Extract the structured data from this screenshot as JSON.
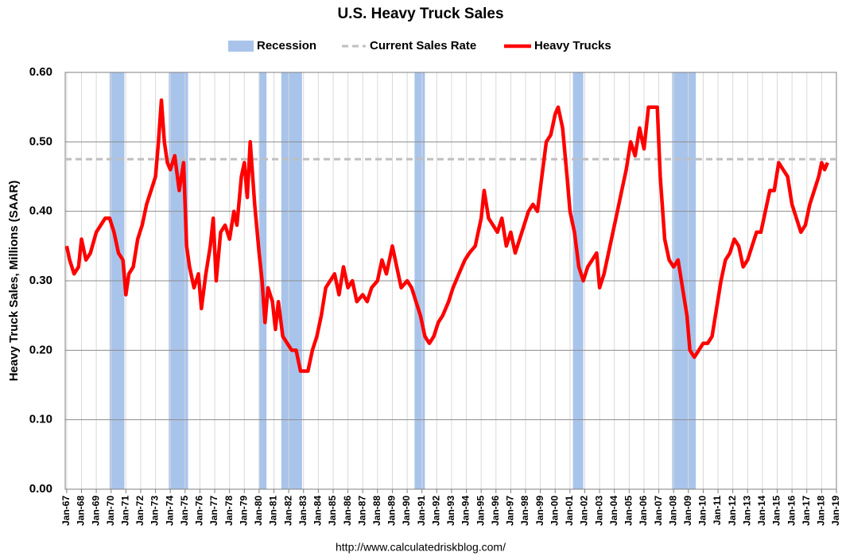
{
  "chart_data": {
    "type": "line",
    "title": "U.S. Heavy Truck Sales",
    "y_label": "Heavy Truck Sales, Millions (SAAR)",
    "source": "http://www.calculatedriskblog.com/",
    "xlim": [
      1966.9,
      2019.0
    ],
    "ylim": [
      0,
      0.6
    ],
    "grid": true,
    "legend": "top",
    "yticks": [
      {
        "value": 0,
        "label": "0.00"
      },
      {
        "value": 0.1,
        "label": "0.10"
      },
      {
        "value": 0.2,
        "label": "0.20"
      },
      {
        "value": 0.3,
        "label": "0.30"
      },
      {
        "value": 0.4,
        "label": "0.40"
      },
      {
        "value": 0.5,
        "label": "0.50"
      },
      {
        "value": 0.6,
        "label": "0.60"
      }
    ],
    "xticks": [
      {
        "value": 1967,
        "label": "Jan-67"
      },
      {
        "value": 1968,
        "label": "Jan-68"
      },
      {
        "value": 1969,
        "label": "Jan-69"
      },
      {
        "value": 1970,
        "label": "Jan-70"
      },
      {
        "value": 1971,
        "label": "Jan-71"
      },
      {
        "value": 1972,
        "label": "Jan-72"
      },
      {
        "value": 1973,
        "label": "Jan-73"
      },
      {
        "value": 1974,
        "label": "Jan-74"
      },
      {
        "value": 1975,
        "label": "Jan-75"
      },
      {
        "value": 1976,
        "label": "Jan-76"
      },
      {
        "value": 1977,
        "label": "Jan-77"
      },
      {
        "value": 1978,
        "label": "Jan-78"
      },
      {
        "value": 1979,
        "label": "Jan-79"
      },
      {
        "value": 1980,
        "label": "Jan-80"
      },
      {
        "value": 1981,
        "label": "Jan-81"
      },
      {
        "value": 1982,
        "label": "Jan-82"
      },
      {
        "value": 1983,
        "label": "Jan-83"
      },
      {
        "value": 1984,
        "label": "Jan-84"
      },
      {
        "value": 1985,
        "label": "Jan-85"
      },
      {
        "value": 1986,
        "label": "Jan-86"
      },
      {
        "value": 1987,
        "label": "Jan-87"
      },
      {
        "value": 1988,
        "label": "Jan-88"
      },
      {
        "value": 1989,
        "label": "Jan-89"
      },
      {
        "value": 1990,
        "label": "Jan-90"
      },
      {
        "value": 1991,
        "label": "Jan-91"
      },
      {
        "value": 1992,
        "label": "Jan-92"
      },
      {
        "value": 1993,
        "label": "Jan-93"
      },
      {
        "value": 1994,
        "label": "Jan-94"
      },
      {
        "value": 1995,
        "label": "Jan-95"
      },
      {
        "value": 1996,
        "label": "Jan-96"
      },
      {
        "value": 1997,
        "label": "Jan-97"
      },
      {
        "value": 1998,
        "label": "Jan-98"
      },
      {
        "value": 1999,
        "label": "Jan-99"
      },
      {
        "value": 2000,
        "label": "Jan-00"
      },
      {
        "value": 2001,
        "label": "Jan-01"
      },
      {
        "value": 2002,
        "label": "Jan-02"
      },
      {
        "value": 2003,
        "label": "Jan-03"
      },
      {
        "value": 2004,
        "label": "Jan-04"
      },
      {
        "value": 2005,
        "label": "Jan-05"
      },
      {
        "value": 2006,
        "label": "Jan-06"
      },
      {
        "value": 2007,
        "label": "Jan-07"
      },
      {
        "value": 2008,
        "label": "Jan-08"
      },
      {
        "value": 2009,
        "label": "Jan-09"
      },
      {
        "value": 2010,
        "label": "Jan-10"
      },
      {
        "value": 2011,
        "label": "Jan-11"
      },
      {
        "value": 2012,
        "label": "Jan-12"
      },
      {
        "value": 2013,
        "label": "Jan-13"
      },
      {
        "value": 2014,
        "label": "Jan-14"
      },
      {
        "value": 2015,
        "label": "Jan-15"
      },
      {
        "value": 2016,
        "label": "Jan-16"
      },
      {
        "value": 2017,
        "label": "Jan-17"
      },
      {
        "value": 2018,
        "label": "Jan-18"
      },
      {
        "value": 2019,
        "label": "Jan-19"
      }
    ],
    "recessions": {
      "name": "Recession",
      "color": "#a9c4eb",
      "spans": [
        [
          1969.9,
          1970.9
        ],
        [
          1973.9,
          1975.2
        ],
        [
          1980.0,
          1980.5
        ],
        [
          1981.5,
          1982.9
        ],
        [
          1990.5,
          1991.2
        ],
        [
          2001.2,
          2001.9
        ],
        [
          2007.9,
          2009.5
        ]
      ]
    },
    "reference_line": {
      "name": "Current Sales Rate",
      "color": "#bfbfbf",
      "value": 0.475
    },
    "x": [
      1967.0,
      1967.2,
      1967.5,
      1967.8,
      1968.0,
      1968.3,
      1968.6,
      1969.0,
      1969.3,
      1969.6,
      1969.9,
      1970.2,
      1970.5,
      1970.8,
      1971.0,
      1971.2,
      1971.5,
      1971.8,
      1972.1,
      1972.4,
      1972.7,
      1973.0,
      1973.2,
      1973.4,
      1973.6,
      1973.8,
      1974.0,
      1974.3,
      1974.6,
      1974.9,
      1975.1,
      1975.3,
      1975.6,
      1975.9,
      1976.1,
      1976.4,
      1976.7,
      1976.9,
      1977.1,
      1977.4,
      1977.7,
      1978.0,
      1978.3,
      1978.5,
      1978.8,
      1979.0,
      1979.2,
      1979.4,
      1979.7,
      1980.0,
      1980.2,
      1980.4,
      1980.6,
      1980.9,
      1981.1,
      1981.3,
      1981.6,
      1981.9,
      1982.2,
      1982.5,
      1982.8,
      1983.0,
      1983.3,
      1983.6,
      1983.9,
      1984.2,
      1984.5,
      1984.8,
      1985.1,
      1985.4,
      1985.7,
      1986.0,
      1986.3,
      1986.6,
      1987.0,
      1987.3,
      1987.6,
      1988.0,
      1988.3,
      1988.6,
      1989.0,
      1989.3,
      1989.6,
      1990.0,
      1990.3,
      1990.6,
      1990.9,
      1991.2,
      1991.5,
      1991.8,
      1992.1,
      1992.4,
      1992.8,
      1993.1,
      1993.5,
      1993.9,
      1994.2,
      1994.6,
      1995.0,
      1995.2,
      1995.5,
      1995.8,
      1996.1,
      1996.4,
      1996.7,
      1997.0,
      1997.3,
      1997.6,
      1997.9,
      1998.2,
      1998.5,
      1998.8,
      1999.1,
      1999.4,
      1999.7,
      2000.0,
      2000.2,
      2000.5,
      2000.8,
      2001.0,
      2001.3,
      2001.6,
      2001.9,
      2002.2,
      2002.5,
      2002.8,
      2003.0,
      2003.3,
      2003.6,
      2003.9,
      2004.2,
      2004.5,
      2004.8,
      2005.1,
      2005.4,
      2005.7,
      2006.0,
      2006.3,
      2006.6,
      2006.9,
      2007.1,
      2007.4,
      2007.7,
      2008.0,
      2008.3,
      2008.6,
      2008.9,
      2009.1,
      2009.4,
      2009.7,
      2010.0,
      2010.3,
      2010.6,
      2010.9,
      2011.2,
      2011.5,
      2011.8,
      2012.1,
      2012.4,
      2012.7,
      2013.0,
      2013.3,
      2013.6,
      2013.9,
      2014.2,
      2014.5,
      2014.8,
      2015.1,
      2015.4,
      2015.7,
      2016.0,
      2016.3,
      2016.6,
      2016.9,
      2017.2,
      2017.5,
      2017.8,
      2018.0,
      2018.2,
      2018.4
    ],
    "series": [
      {
        "name": "Heavy Trucks",
        "color": "#ff0000",
        "values": [
          0.35,
          0.33,
          0.31,
          0.32,
          0.36,
          0.33,
          0.34,
          0.37,
          0.38,
          0.39,
          0.39,
          0.37,
          0.34,
          0.33,
          0.28,
          0.31,
          0.32,
          0.36,
          0.38,
          0.41,
          0.43,
          0.45,
          0.5,
          0.56,
          0.5,
          0.47,
          0.46,
          0.48,
          0.43,
          0.47,
          0.35,
          0.32,
          0.29,
          0.31,
          0.26,
          0.31,
          0.35,
          0.39,
          0.3,
          0.37,
          0.38,
          0.36,
          0.4,
          0.38,
          0.45,
          0.47,
          0.42,
          0.5,
          0.41,
          0.34,
          0.3,
          0.24,
          0.29,
          0.27,
          0.23,
          0.27,
          0.22,
          0.21,
          0.2,
          0.2,
          0.17,
          0.17,
          0.17,
          0.2,
          0.22,
          0.25,
          0.29,
          0.3,
          0.31,
          0.28,
          0.32,
          0.29,
          0.3,
          0.27,
          0.28,
          0.27,
          0.29,
          0.3,
          0.33,
          0.31,
          0.35,
          0.32,
          0.29,
          0.3,
          0.29,
          0.27,
          0.25,
          0.22,
          0.21,
          0.22,
          0.24,
          0.25,
          0.27,
          0.29,
          0.31,
          0.33,
          0.34,
          0.35,
          0.39,
          0.43,
          0.39,
          0.38,
          0.37,
          0.39,
          0.35,
          0.37,
          0.34,
          0.36,
          0.38,
          0.4,
          0.41,
          0.4,
          0.45,
          0.5,
          0.51,
          0.54,
          0.55,
          0.52,
          0.45,
          0.4,
          0.37,
          0.32,
          0.3,
          0.32,
          0.33,
          0.34,
          0.29,
          0.31,
          0.34,
          0.37,
          0.4,
          0.43,
          0.46,
          0.5,
          0.48,
          0.52,
          0.49,
          0.55,
          0.55,
          0.55,
          0.45,
          0.36,
          0.33,
          0.32,
          0.33,
          0.29,
          0.25,
          0.2,
          0.19,
          0.2,
          0.21,
          0.21,
          0.22,
          0.26,
          0.3,
          0.33,
          0.34,
          0.36,
          0.35,
          0.32,
          0.33,
          0.35,
          0.37,
          0.37,
          0.4,
          0.43,
          0.43,
          0.47,
          0.46,
          0.45,
          0.41,
          0.39,
          0.37,
          0.38,
          0.41,
          0.43,
          0.45,
          0.47,
          0.46,
          0.47
        ]
      }
    ]
  }
}
